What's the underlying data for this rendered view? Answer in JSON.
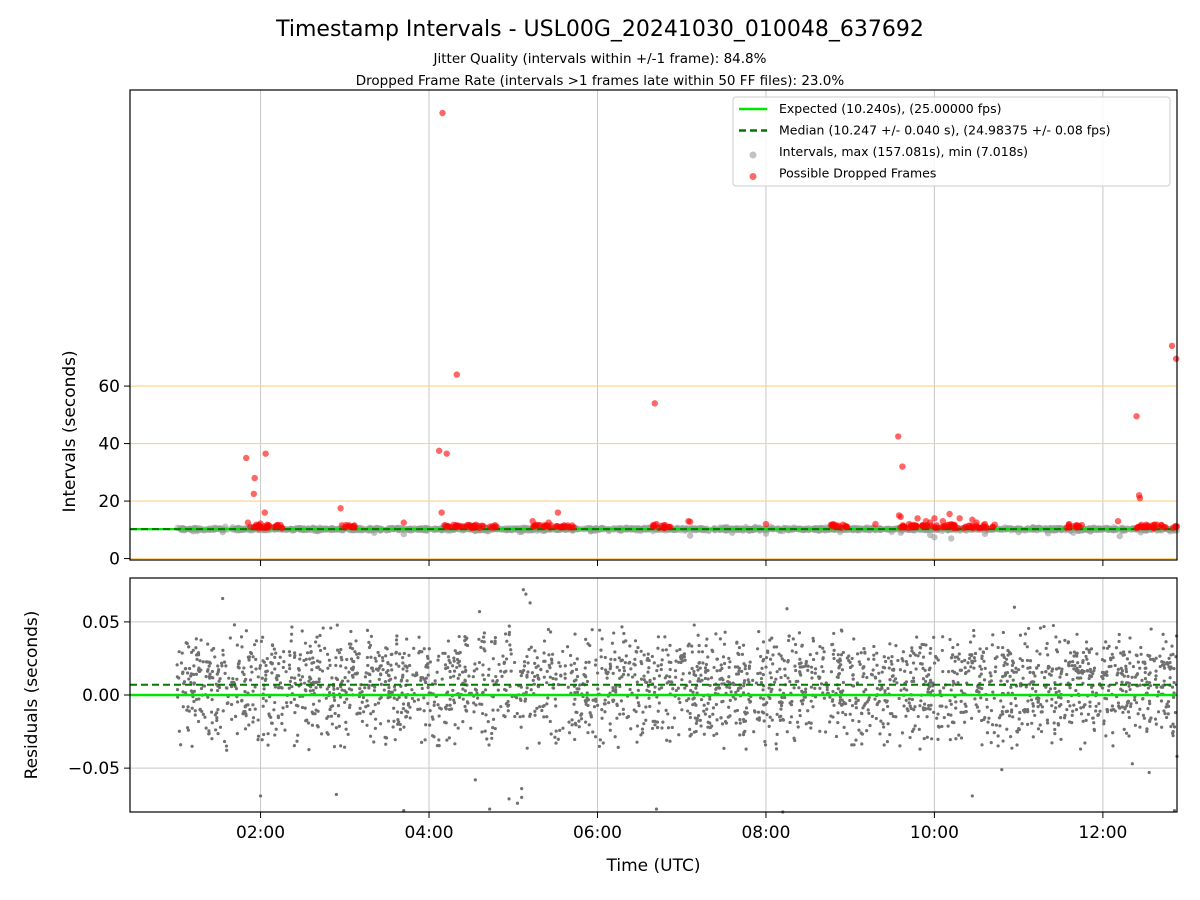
{
  "figure": {
    "title": "Timestamp Intervals - USL00G_20241030_010048_637692",
    "subtitle_line1": "Jitter Quality (intervals within +/-1 frame): 84.8%",
    "subtitle_line2": "Dropped Frame Rate (intervals >1 frames late within 50 FF files): 23.0%"
  },
  "colors": {
    "expected": "#00e600",
    "median": "#007a00",
    "intervals": "#999999",
    "dropped": "#ff0000",
    "threshold_lines": "#ffd27f",
    "grid": "#c8c8c8",
    "residuals": "#707070"
  },
  "chart_data": [
    {
      "type": "scatter",
      "panel": "top",
      "ylabel": "Intervals (seconds)",
      "xlabel": "",
      "xlim_hours": [
        0.45,
        12.88
      ],
      "ylim": [
        -0.5,
        163
      ],
      "x_ticks": [
        {
          "value": 2,
          "label": "02:00"
        },
        {
          "value": 4,
          "label": "04:00"
        },
        {
          "value": 6,
          "label": "06:00"
        },
        {
          "value": 8,
          "label": "08:00"
        },
        {
          "value": 10,
          "label": "10:00"
        },
        {
          "value": 12,
          "label": "12:00"
        }
      ],
      "y_ticks": [
        {
          "value": 0,
          "label": "0"
        },
        {
          "value": 20,
          "label": "20"
        },
        {
          "value": 40,
          "label": "40"
        },
        {
          "value": 60,
          "label": "60"
        }
      ],
      "grid": true,
      "threshold_lines": [
        0,
        20,
        40,
        60
      ],
      "expected_interval": 10.24,
      "median_interval": 10.247,
      "interval_data_range": [
        1.0,
        12.88
      ],
      "legend": {
        "placement": "upper right",
        "entries": [
          {
            "label": "Expected (10.240s), (25.00000 fps)",
            "style": "solid-line",
            "color": "#00e600"
          },
          {
            "label": "Median (10.247 +/- 0.040 s), (24.98375 +/- 0.08 fps)",
            "style": "dashed-line",
            "color": "#007a00"
          },
          {
            "label": "Intervals, max (157.081s), min (7.018s)",
            "style": "marker",
            "color": "#999999"
          },
          {
            "label": "Possible Dropped Frames",
            "style": "marker",
            "color": "#ff0000"
          }
        ]
      },
      "interval_outliers": [
        [
          1.2,
          9.5
        ],
        [
          1.55,
          9.2
        ],
        [
          3.35,
          9.0
        ],
        [
          3.7,
          8.5
        ],
        [
          5.1,
          9.3
        ],
        [
          7.1,
          8.0
        ],
        [
          7.6,
          9.0
        ],
        [
          8.0,
          8.7
        ],
        [
          9.6,
          9.0
        ],
        [
          9.95,
          8.2
        ],
        [
          10.0,
          7.4
        ],
        [
          10.2,
          7.0
        ],
        [
          10.6,
          8.6
        ],
        [
          11.0,
          9.2
        ],
        [
          11.35,
          8.8
        ],
        [
          11.65,
          9.0
        ],
        [
          11.85,
          9.4
        ],
        [
          12.2,
          7.8
        ],
        [
          12.45,
          9.1
        ],
        [
          12.8,
          9.5
        ]
      ],
      "dropped_frames": [
        [
          1.83,
          35.0
        ],
        [
          1.93,
          28.0
        ],
        [
          1.92,
          22.5
        ],
        [
          2.06,
          36.5
        ],
        [
          2.05,
          16.0
        ],
        [
          1.85,
          12.5
        ],
        [
          1.88,
          11.0
        ],
        [
          1.95,
          11.8
        ],
        [
          2.0,
          12.2
        ],
        [
          2.1,
          11.5
        ],
        [
          2.18,
          11.0
        ],
        [
          2.25,
          10.8
        ],
        [
          2.95,
          17.5
        ],
        [
          3.1,
          11.2
        ],
        [
          3.0,
          10.8
        ],
        [
          3.7,
          12.5
        ],
        [
          4.12,
          37.5
        ],
        [
          4.21,
          36.5
        ],
        [
          4.33,
          64.0
        ],
        [
          4.16,
          155.0
        ],
        [
          4.15,
          16.0
        ],
        [
          4.25,
          11.0
        ],
        [
          4.4,
          11.2
        ],
        [
          4.5,
          10.8
        ],
        [
          5.23,
          13.0
        ],
        [
          5.3,
          11.5
        ],
        [
          5.42,
          12.5
        ],
        [
          5.53,
          16.0
        ],
        [
          5.6,
          11.0
        ],
        [
          5.7,
          11.5
        ],
        [
          6.68,
          54.0
        ],
        [
          6.7,
          12.0
        ],
        [
          6.85,
          11.0
        ],
        [
          7.08,
          13.0
        ],
        [
          7.1,
          12.8
        ],
        [
          8.0,
          12.0
        ],
        [
          8.8,
          12.0
        ],
        [
          8.95,
          11.0
        ],
        [
          9.3,
          12.0
        ],
        [
          9.57,
          42.5
        ],
        [
          9.62,
          32.0
        ],
        [
          9.58,
          15.0
        ],
        [
          9.6,
          14.5
        ],
        [
          9.7,
          12.0
        ],
        [
          9.8,
          14.0
        ],
        [
          9.9,
          13.0
        ],
        [
          9.95,
          12.5
        ],
        [
          10.0,
          14.0
        ],
        [
          10.1,
          13.0
        ],
        [
          10.18,
          15.5
        ],
        [
          10.2,
          12.0
        ],
        [
          10.3,
          14.0
        ],
        [
          10.45,
          13.5
        ],
        [
          10.5,
          12.5
        ],
        [
          10.6,
          12.0
        ],
        [
          11.6,
          12.0
        ],
        [
          11.7,
          11.0
        ],
        [
          12.18,
          13.0
        ],
        [
          12.4,
          49.5
        ],
        [
          12.43,
          22.0
        ],
        [
          12.44,
          21.0
        ],
        [
          12.55,
          11.0
        ],
        [
          12.7,
          11.5
        ],
        [
          12.82,
          74.0
        ],
        [
          12.87,
          69.5
        ]
      ],
      "dropped_frame_clusters": [
        [
          1.88,
          2.28
        ],
        [
          2.95,
          3.12
        ],
        [
          4.15,
          4.8
        ],
        [
          5.22,
          5.45
        ],
        [
          5.5,
          5.72
        ],
        [
          6.65,
          6.88
        ],
        [
          8.75,
          8.98
        ],
        [
          9.55,
          10.72
        ],
        [
          11.55,
          11.75
        ],
        [
          12.4,
          12.88
        ]
      ]
    },
    {
      "type": "scatter",
      "panel": "bottom",
      "xlabel": "Time (UTC)",
      "ylabel": "Residuals (seconds)",
      "xlim_hours": [
        0.45,
        12.88
      ],
      "ylim": [
        -0.08,
        0.08
      ],
      "x_ticks": [
        {
          "value": 2,
          "label": "02:00"
        },
        {
          "value": 4,
          "label": "04:00"
        },
        {
          "value": 6,
          "label": "06:00"
        },
        {
          "value": 8,
          "label": "08:00"
        },
        {
          "value": 10,
          "label": "10:00"
        },
        {
          "value": 12,
          "label": "12:00"
        }
      ],
      "y_ticks": [
        {
          "value": -0.05,
          "label": "−0.05"
        },
        {
          "value": 0.0,
          "label": "0.00"
        },
        {
          "value": 0.05,
          "label": "0.05"
        }
      ],
      "grid": true,
      "expected_residual": 0.0,
      "median_residual": 0.007,
      "residual_data_range": [
        1.0,
        12.88
      ],
      "residual_band": [
        -0.035,
        0.045
      ],
      "residual_outliers": [
        [
          1.55,
          0.066
        ],
        [
          2.0,
          -0.069
        ],
        [
          2.9,
          -0.068
        ],
        [
          3.7,
          -0.079
        ],
        [
          4.55,
          -0.058
        ],
        [
          4.6,
          0.057
        ],
        [
          4.72,
          -0.078
        ],
        [
          4.95,
          -0.071
        ],
        [
          5.05,
          -0.074
        ],
        [
          5.1,
          -0.064
        ],
        [
          5.12,
          0.072
        ],
        [
          5.15,
          0.069
        ],
        [
          5.2,
          0.063
        ],
        [
          5.1,
          -0.07
        ],
        [
          6.7,
          -0.078
        ],
        [
          8.2,
          -0.08
        ],
        [
          8.25,
          0.059
        ],
        [
          10.45,
          -0.069
        ],
        [
          10.8,
          -0.051
        ],
        [
          10.95,
          0.06
        ],
        [
          12.35,
          -0.047
        ],
        [
          12.55,
          -0.053
        ],
        [
          12.85,
          -0.079
        ],
        [
          12.88,
          -0.042
        ]
      ]
    }
  ]
}
